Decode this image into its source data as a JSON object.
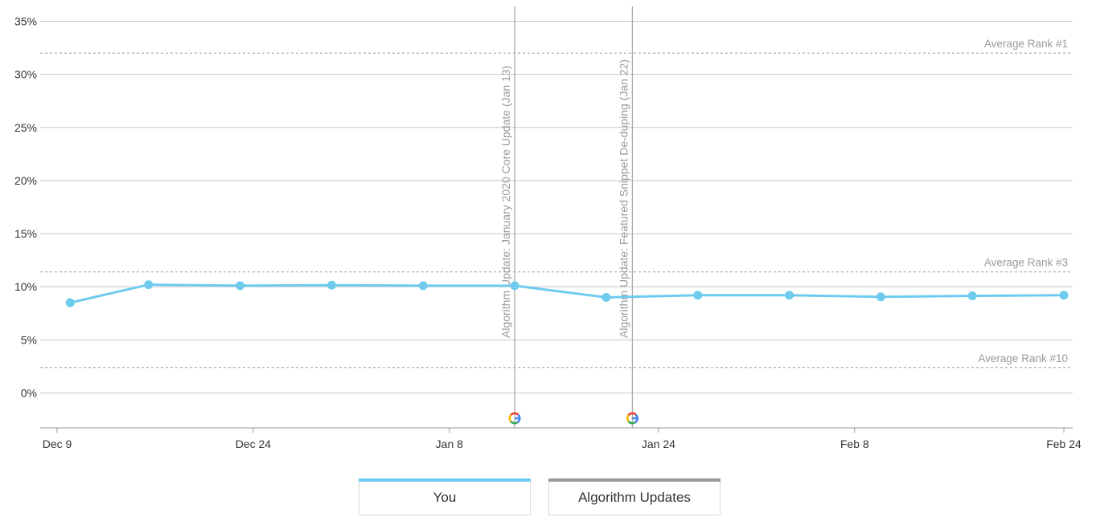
{
  "chart_data": {
    "type": "line",
    "title": "",
    "xlabel": "",
    "ylabel": "",
    "ylim": [
      -3.4,
      35
    ],
    "yticks": [
      0,
      5,
      10,
      15,
      20,
      25,
      30,
      35
    ],
    "ytick_labels": [
      "0%",
      "5%",
      "10%",
      "15%",
      "20%",
      "25%",
      "30%",
      "35%"
    ],
    "xrange": [
      "2019-12-09",
      "2020-02-24"
    ],
    "xticks": [
      "2019-12-09",
      "2019-12-24",
      "2020-01-08",
      "2020-01-24",
      "2020-02-08",
      "2020-02-24"
    ],
    "xtick_labels": [
      "Dec 9",
      "Dec 24",
      "Jan 8",
      "Jan 24",
      "Feb 8",
      "Feb 24"
    ],
    "grid": true,
    "series": [
      {
        "name": "You",
        "color": "#6ecbee",
        "points": [
          {
            "x": "2019-12-10",
            "y": 8.5
          },
          {
            "x": "2019-12-16",
            "y": 10.2
          },
          {
            "x": "2019-12-23",
            "y": 10.1
          },
          {
            "x": "2019-12-30",
            "y": 10.15
          },
          {
            "x": "2020-01-06",
            "y": 10.1
          },
          {
            "x": "2020-01-13",
            "y": 10.1
          },
          {
            "x": "2020-01-20",
            "y": 9.0
          },
          {
            "x": "2020-01-27",
            "y": 9.2
          },
          {
            "x": "2020-02-03",
            "y": 9.2
          },
          {
            "x": "2020-02-10",
            "y": 9.05
          },
          {
            "x": "2020-02-17",
            "y": 9.15
          },
          {
            "x": "2020-02-24",
            "y": 9.2
          }
        ]
      }
    ],
    "reference_lines": [
      {
        "label": "Average Rank #1",
        "y": 32.0
      },
      {
        "label": "Average Rank #3",
        "y": 11.4
      },
      {
        "label": "Average Rank #10",
        "y": 2.4
      }
    ],
    "annotations": [
      {
        "x": "2020-01-13",
        "label": "Algorithm Update: January 2020 Core Update (Jan 13)",
        "icon": "google-g-icon"
      },
      {
        "x": "2020-01-22",
        "label": "Algorithm Update: Featured Snippet De-duping (Jan 22)",
        "icon": "google-g-icon"
      }
    ],
    "legend": {
      "placement": "bottom-center",
      "items": [
        {
          "label": "You",
          "color": "#6ecbee"
        },
        {
          "label": "Algorithm Updates",
          "color": "#9a9a9a"
        }
      ]
    },
    "colors": {
      "gridline": "#c8c8c8",
      "axis": "#9a9a9a",
      "reference": "#9a9a9a",
      "reference_label": "#9a9a9a",
      "annotation_line": "#a8a8a8",
      "annotation_label": "#9a9a9a",
      "tick_label": "#333333"
    }
  }
}
